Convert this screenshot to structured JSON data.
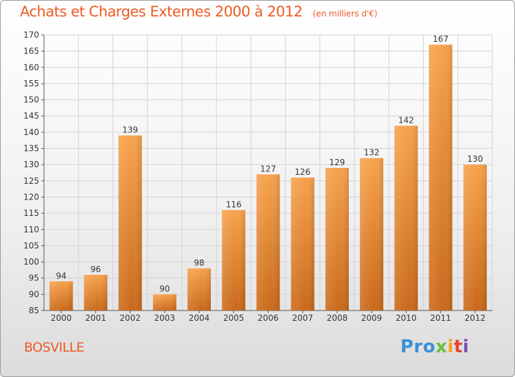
{
  "chart_data": {
    "type": "bar",
    "title": "Achats et Charges Externes 2000 à 2012",
    "subtitle": "(en milliers d'€)",
    "categories": [
      "2000",
      "2001",
      "2002",
      "2003",
      "2004",
      "2005",
      "2006",
      "2007",
      "2008",
      "2009",
      "2010",
      "2011",
      "2012"
    ],
    "values": [
      94,
      96,
      139,
      90,
      98,
      116,
      127,
      126,
      129,
      132,
      142,
      167,
      130
    ],
    "ylim": [
      85,
      170
    ],
    "yticks": [
      85,
      90,
      95,
      100,
      105,
      110,
      115,
      120,
      125,
      130,
      135,
      140,
      145,
      150,
      155,
      160,
      165,
      170
    ],
    "grid": true,
    "bar_color": "#f0912f",
    "bar_color_dark": "#c96a15"
  },
  "commune": "BOSVILLE",
  "logo": {
    "text": "Proxiti",
    "parts": [
      "Pro",
      "x",
      "i",
      "t",
      "i"
    ]
  }
}
